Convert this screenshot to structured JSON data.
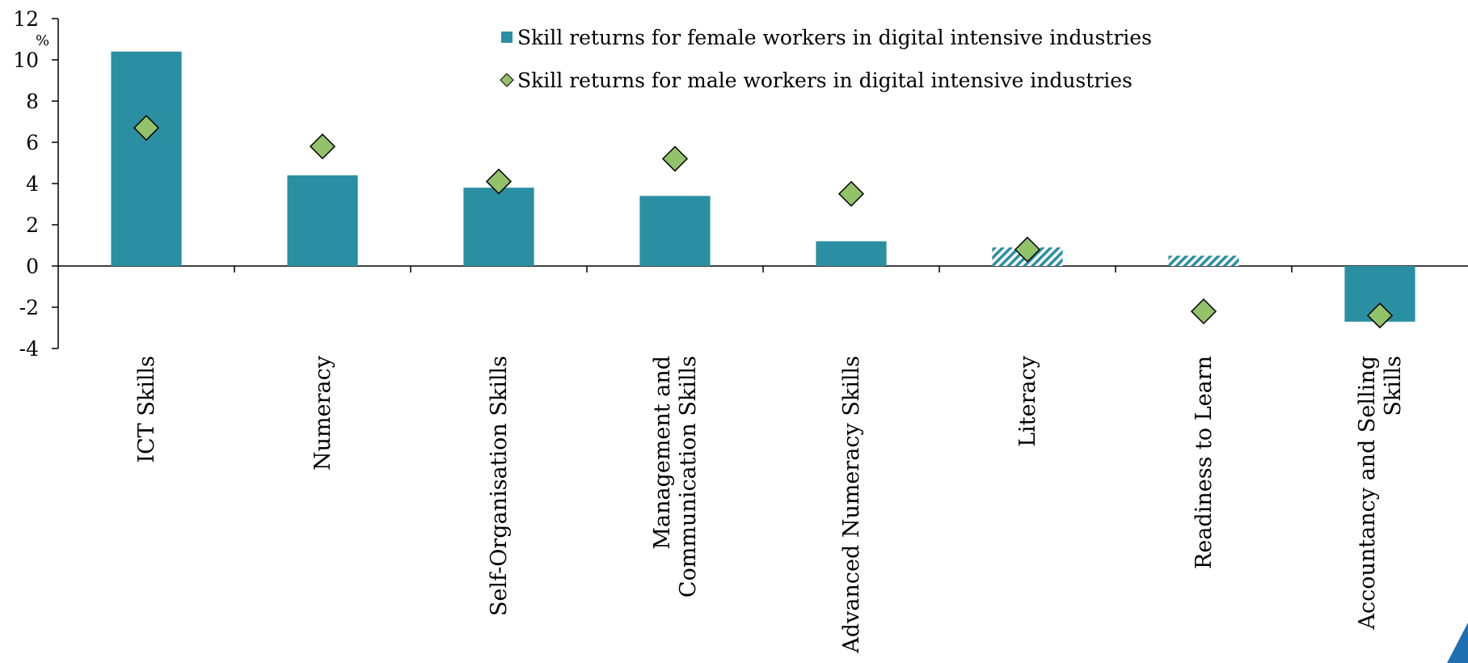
{
  "chart_data": {
    "type": "bar",
    "unit": "%",
    "categories": [
      [
        "ICT Skills"
      ],
      [
        "Numeracy"
      ],
      [
        "Self-Organisation Skills"
      ],
      [
        "Management and",
        "Communication Skills"
      ],
      [
        "Advanced Numeracy Skills"
      ],
      [
        "Literacy"
      ],
      [
        "Readiness to Learn"
      ],
      [
        "Accountancy and Selling",
        "Skills"
      ]
    ],
    "series": [
      {
        "name": "Skill returns for female workers in digital intensive industries",
        "color": "#2a8fa3",
        "marker": "bar",
        "values": [
          10.4,
          4.4,
          3.8,
          3.4,
          1.2,
          0.9,
          0.5,
          -2.7
        ],
        "hatched": [
          false,
          false,
          false,
          false,
          false,
          true,
          true,
          false
        ]
      },
      {
        "name": "Skill returns for male workers in digital intensive industries",
        "color": "#92c26a",
        "marker": "diamond",
        "values": [
          6.7,
          5.8,
          4.1,
          5.2,
          3.5,
          0.8,
          -2.2,
          -2.4
        ]
      }
    ],
    "ylim": [
      -4,
      12
    ],
    "yticks": [
      -4,
      -2,
      0,
      2,
      4,
      6,
      8,
      10,
      12
    ],
    "grid": false
  }
}
